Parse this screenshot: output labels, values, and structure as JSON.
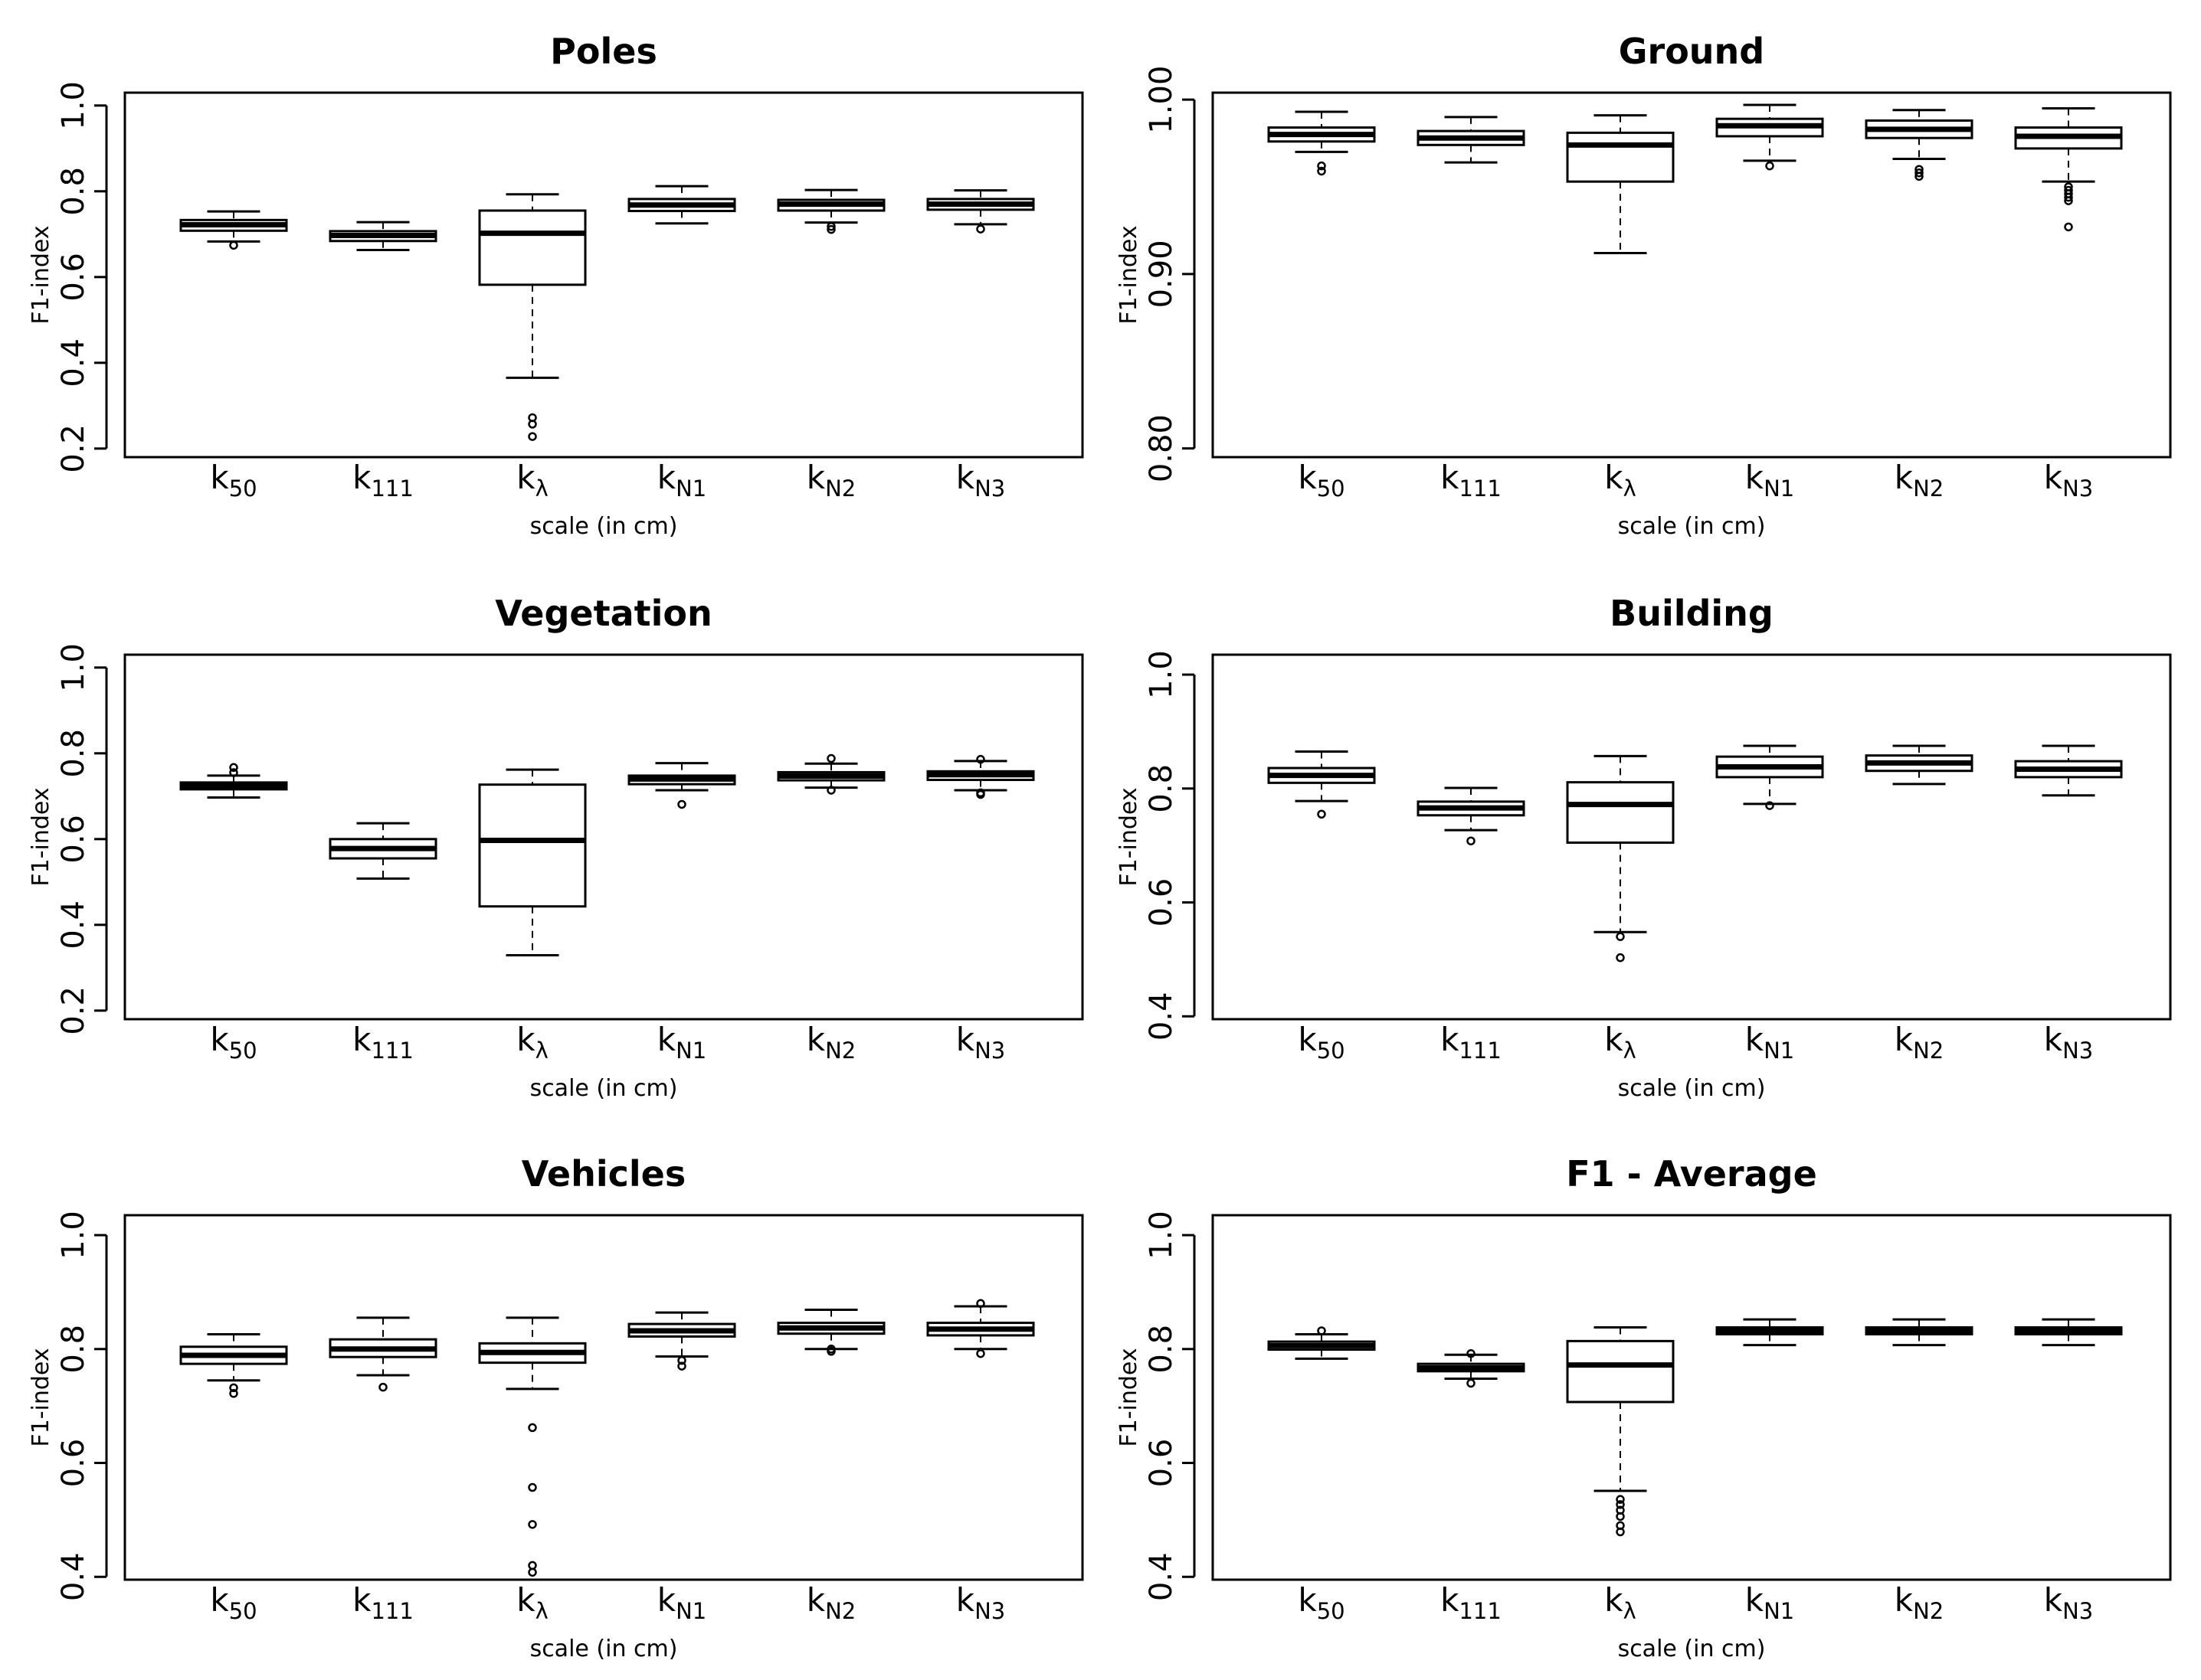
{
  "chart_data": [
    {
      "type": "boxplot",
      "title": "Poles",
      "xlabel": "scale (in cm)",
      "ylabel": "F1-index",
      "ylim": [
        0.18,
        1.03
      ],
      "yticks": [
        "0.2",
        "0.4",
        "0.6",
        "0.8",
        "1.0"
      ],
      "categories": [
        {
          "base": "k",
          "sub": "50"
        },
        {
          "base": "k",
          "sub": "111"
        },
        {
          "base": "k",
          "sub": "λ"
        },
        {
          "base": "k",
          "sub": "N1"
        },
        {
          "base": "k",
          "sub": "N2"
        },
        {
          "base": "k",
          "sub": "N3"
        }
      ],
      "boxes": [
        {
          "whisker_low": 0.683,
          "q1": 0.708,
          "median": 0.722,
          "q3": 0.733,
          "whisker_high": 0.753,
          "outliers": [
            0.674
          ]
        },
        {
          "whisker_low": 0.663,
          "q1": 0.684,
          "median": 0.697,
          "q3": 0.707,
          "whisker_high": 0.728,
          "outliers": []
        },
        {
          "whisker_low": 0.365,
          "q1": 0.582,
          "median": 0.702,
          "q3": 0.755,
          "whisker_high": 0.793,
          "outliers": [
            0.228,
            0.257,
            0.272
          ]
        },
        {
          "whisker_low": 0.725,
          "q1": 0.754,
          "median": 0.768,
          "q3": 0.782,
          "whisker_high": 0.812,
          "outliers": []
        },
        {
          "whisker_low": 0.727,
          "q1": 0.755,
          "median": 0.77,
          "q3": 0.78,
          "whisker_high": 0.803,
          "outliers": [
            0.711,
            0.718
          ]
        },
        {
          "whisker_low": 0.723,
          "q1": 0.757,
          "median": 0.77,
          "q3": 0.782,
          "whisker_high": 0.802,
          "outliers": [
            0.712
          ]
        }
      ]
    },
    {
      "type": "boxplot",
      "title": "Ground",
      "xlabel": "scale (in cm)",
      "ylabel": "F1-index",
      "ylim": [
        0.795,
        1.004
      ],
      "yticks": [
        "0.80",
        "0.90",
        "1.00"
      ],
      "categories": [
        {
          "base": "k",
          "sub": "50"
        },
        {
          "base": "k",
          "sub": "111"
        },
        {
          "base": "k",
          "sub": "λ"
        },
        {
          "base": "k",
          "sub": "N1"
        },
        {
          "base": "k",
          "sub": "N2"
        },
        {
          "base": "k",
          "sub": "N3"
        }
      ],
      "boxes": [
        {
          "whisker_low": 0.97,
          "q1": 0.976,
          "median": 0.98,
          "q3": 0.984,
          "whisker_high": 0.993,
          "outliers": [
            0.959,
            0.962
          ]
        },
        {
          "whisker_low": 0.964,
          "q1": 0.974,
          "median": 0.978,
          "q3": 0.982,
          "whisker_high": 0.99,
          "outliers": []
        },
        {
          "whisker_low": 0.912,
          "q1": 0.953,
          "median": 0.974,
          "q3": 0.981,
          "whisker_high": 0.991,
          "outliers": []
        },
        {
          "whisker_low": 0.965,
          "q1": 0.979,
          "median": 0.985,
          "q3": 0.989,
          "whisker_high": 0.997,
          "outliers": [
            0.962
          ]
        },
        {
          "whisker_low": 0.966,
          "q1": 0.978,
          "median": 0.983,
          "q3": 0.988,
          "whisker_high": 0.994,
          "outliers": [
            0.956,
            0.958,
            0.96
          ]
        },
        {
          "whisker_low": 0.953,
          "q1": 0.972,
          "median": 0.979,
          "q3": 0.984,
          "whisker_high": 0.995,
          "outliers": [
            0.927,
            0.942,
            0.944,
            0.946,
            0.948,
            0.95
          ]
        }
      ]
    },
    {
      "type": "boxplot",
      "title": "Vegetation",
      "xlabel": "scale (in cm)",
      "ylabel": "F1-index",
      "ylim": [
        0.18,
        1.03
      ],
      "yticks": [
        "0.2",
        "0.4",
        "0.6",
        "0.8",
        "1.0"
      ],
      "categories": [
        {
          "base": "k",
          "sub": "50"
        },
        {
          "base": "k",
          "sub": "111"
        },
        {
          "base": "k",
          "sub": "λ"
        },
        {
          "base": "k",
          "sub": "N1"
        },
        {
          "base": "k",
          "sub": "N2"
        },
        {
          "base": "k",
          "sub": "N3"
        }
      ],
      "boxes": [
        {
          "whisker_low": 0.697,
          "q1": 0.716,
          "median": 0.724,
          "q3": 0.732,
          "whisker_high": 0.748,
          "outliers": [
            0.755,
            0.767
          ]
        },
        {
          "whisker_low": 0.508,
          "q1": 0.555,
          "median": 0.578,
          "q3": 0.6,
          "whisker_high": 0.637,
          "outliers": []
        },
        {
          "whisker_low": 0.329,
          "q1": 0.443,
          "median": 0.597,
          "q3": 0.727,
          "whisker_high": 0.762,
          "outliers": []
        },
        {
          "whisker_low": 0.714,
          "q1": 0.728,
          "median": 0.74,
          "q3": 0.748,
          "whisker_high": 0.777,
          "outliers": [
            0.681
          ]
        },
        {
          "whisker_low": 0.72,
          "q1": 0.737,
          "median": 0.747,
          "q3": 0.756,
          "whisker_high": 0.776,
          "outliers": [
            0.714,
            0.788
          ]
        },
        {
          "whisker_low": 0.714,
          "q1": 0.738,
          "median": 0.75,
          "q3": 0.758,
          "whisker_high": 0.782,
          "outliers": [
            0.704,
            0.708,
            0.786
          ]
        }
      ]
    },
    {
      "type": "boxplot",
      "title": "Building",
      "xlabel": "scale (in cm)",
      "ylabel": "F1-index",
      "ylim": [
        0.395,
        1.035
      ],
      "yticks": [
        "0.4",
        "0.6",
        "0.8",
        "1.0"
      ],
      "categories": [
        {
          "base": "k",
          "sub": "50"
        },
        {
          "base": "k",
          "sub": "111"
        },
        {
          "base": "k",
          "sub": "λ"
        },
        {
          "base": "k",
          "sub": "N1"
        },
        {
          "base": "k",
          "sub": "N2"
        },
        {
          "base": "k",
          "sub": "N3"
        }
      ],
      "boxes": [
        {
          "whisker_low": 0.778,
          "q1": 0.81,
          "median": 0.823,
          "q3": 0.836,
          "whisker_high": 0.865,
          "outliers": [
            0.755
          ]
        },
        {
          "whisker_low": 0.727,
          "q1": 0.753,
          "median": 0.766,
          "q3": 0.777,
          "whisker_high": 0.801,
          "outliers": [
            0.708
          ]
        },
        {
          "whisker_low": 0.548,
          "q1": 0.705,
          "median": 0.772,
          "q3": 0.811,
          "whisker_high": 0.857,
          "outliers": [
            0.503,
            0.54
          ]
        },
        {
          "whisker_low": 0.773,
          "q1": 0.82,
          "median": 0.838,
          "q3": 0.856,
          "whisker_high": 0.875,
          "outliers": [
            0.77
          ]
        },
        {
          "whisker_low": 0.808,
          "q1": 0.831,
          "median": 0.845,
          "q3": 0.858,
          "whisker_high": 0.875,
          "outliers": []
        },
        {
          "whisker_low": 0.788,
          "q1": 0.82,
          "median": 0.834,
          "q3": 0.848,
          "whisker_high": 0.875,
          "outliers": []
        }
      ]
    },
    {
      "type": "boxplot",
      "title": "Vehicles",
      "xlabel": "scale (in cm)",
      "ylabel": "F1-index",
      "ylim": [
        0.395,
        1.035
      ],
      "yticks": [
        "0.4",
        "0.6",
        "0.8",
        "1.0"
      ],
      "categories": [
        {
          "base": "k",
          "sub": "50"
        },
        {
          "base": "k",
          "sub": "111"
        },
        {
          "base": "k",
          "sub": "λ"
        },
        {
          "base": "k",
          "sub": "N1"
        },
        {
          "base": "k",
          "sub": "N2"
        },
        {
          "base": "k",
          "sub": "N3"
        }
      ],
      "boxes": [
        {
          "whisker_low": 0.745,
          "q1": 0.774,
          "median": 0.789,
          "q3": 0.804,
          "whisker_high": 0.826,
          "outliers": [
            0.722,
            0.732
          ]
        },
        {
          "whisker_low": 0.754,
          "q1": 0.786,
          "median": 0.8,
          "q3": 0.817,
          "whisker_high": 0.855,
          "outliers": [
            0.733
          ]
        },
        {
          "whisker_low": 0.73,
          "q1": 0.776,
          "median": 0.794,
          "q3": 0.81,
          "whisker_high": 0.855,
          "outliers": [
            0.408,
            0.42,
            0.492,
            0.557,
            0.662
          ]
        },
        {
          "whisker_low": 0.787,
          "q1": 0.822,
          "median": 0.832,
          "q3": 0.844,
          "whisker_high": 0.864,
          "outliers": [
            0.77,
            0.78
          ]
        },
        {
          "whisker_low": 0.8,
          "q1": 0.827,
          "median": 0.837,
          "q3": 0.846,
          "whisker_high": 0.869,
          "outliers": [
            0.796,
            0.8
          ]
        },
        {
          "whisker_low": 0.8,
          "q1": 0.824,
          "median": 0.835,
          "q3": 0.846,
          "whisker_high": 0.875,
          "outliers": [
            0.792,
            0.88
          ]
        }
      ]
    },
    {
      "type": "boxplot",
      "title": "F1 - Average",
      "xlabel": "scale (in cm)",
      "ylabel": "F1-index",
      "ylim": [
        0.395,
        1.035
      ],
      "yticks": [
        "0.4",
        "0.6",
        "0.8",
        "1.0"
      ],
      "categories": [
        {
          "base": "k",
          "sub": "50"
        },
        {
          "base": "k",
          "sub": "111"
        },
        {
          "base": "k",
          "sub": "λ"
        },
        {
          "base": "k",
          "sub": "N1"
        },
        {
          "base": "k",
          "sub": "N2"
        },
        {
          "base": "k",
          "sub": "N3"
        }
      ],
      "boxes": [
        {
          "whisker_low": 0.783,
          "q1": 0.799,
          "median": 0.806,
          "q3": 0.813,
          "whisker_high": 0.826,
          "outliers": [
            0.832
          ]
        },
        {
          "whisker_low": 0.748,
          "q1": 0.761,
          "median": 0.767,
          "q3": 0.774,
          "whisker_high": 0.79,
          "outliers": [
            0.74,
            0.792
          ]
        },
        {
          "whisker_low": 0.551,
          "q1": 0.707,
          "median": 0.772,
          "q3": 0.814,
          "whisker_high": 0.838,
          "outliers": [
            0.479,
            0.49,
            0.506,
            0.517,
            0.527,
            0.536
          ]
        },
        {
          "whisker_low": 0.807,
          "q1": 0.826,
          "median": 0.832,
          "q3": 0.838,
          "whisker_high": 0.852,
          "outliers": []
        },
        {
          "whisker_low": 0.807,
          "q1": 0.826,
          "median": 0.832,
          "q3": 0.838,
          "whisker_high": 0.852,
          "outliers": []
        },
        {
          "whisker_low": 0.807,
          "q1": 0.826,
          "median": 0.832,
          "q3": 0.838,
          "whisker_high": 0.852,
          "outliers": []
        }
      ]
    }
  ]
}
